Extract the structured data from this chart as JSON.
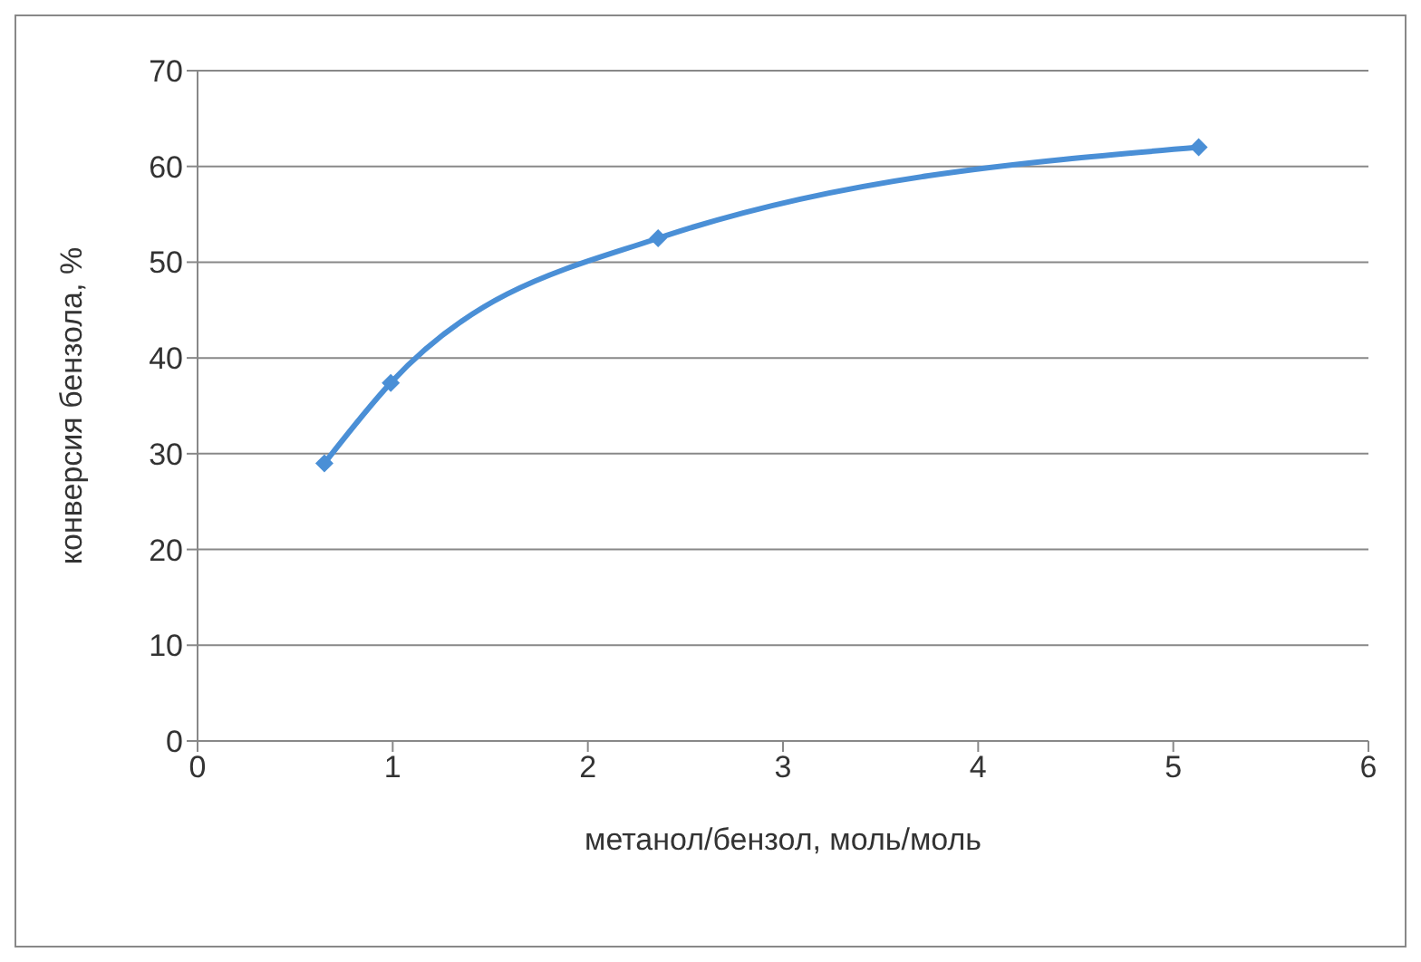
{
  "chart_data": {
    "type": "line",
    "xlabel": "метанол/бензол, моль/моль",
    "ylabel": "конверсия бензола, %",
    "x": [
      0.65,
      0.99,
      2.36,
      5.13
    ],
    "series": [
      {
        "color": "#4a8fd6",
        "values": [
          29,
          37.4,
          52.5,
          62
        ]
      }
    ],
    "xlim": [
      0,
      6
    ],
    "xticks": [
      0,
      1,
      2,
      3,
      4,
      5,
      6
    ],
    "ylim": [
      0,
      70
    ],
    "yticks": [
      0,
      10,
      20,
      30,
      40,
      50,
      60,
      70
    ],
    "grid": "y",
    "marker": "diamond",
    "legend": false
  }
}
